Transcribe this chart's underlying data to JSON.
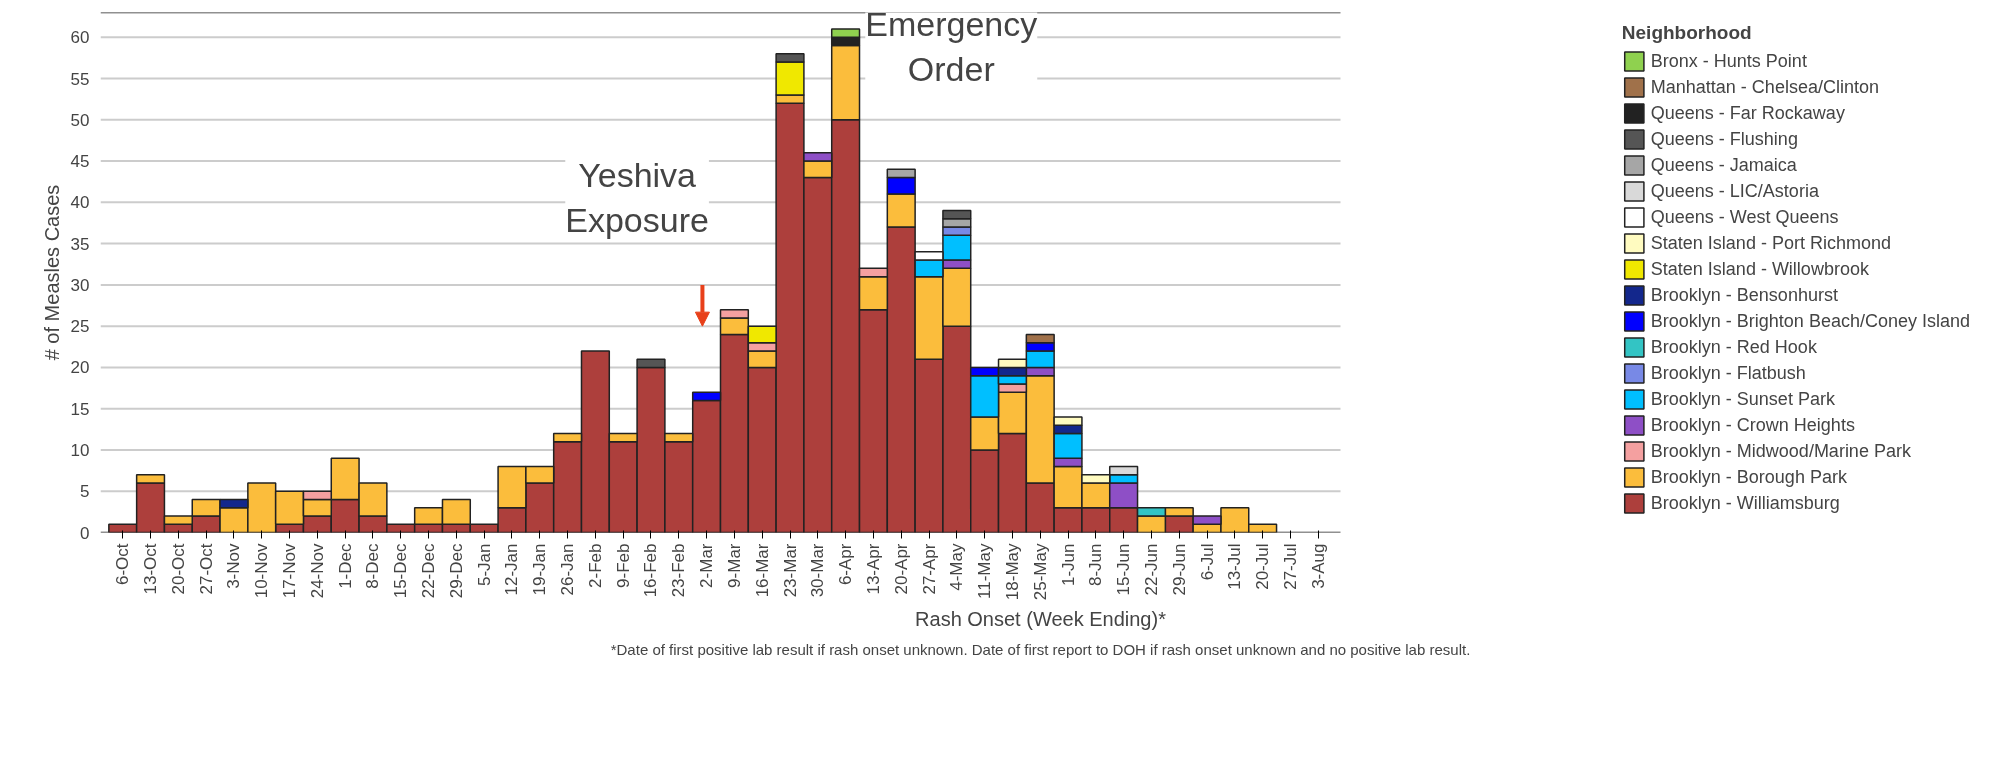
{
  "chart_data": {
    "type": "bar",
    "stacked": true,
    "xlabel": "Rash Onset (Week Ending)*",
    "ylabel": "# of Measles Cases",
    "legend_title": "Neighborhood",
    "categories": [
      "6-Oct",
      "13-Oct",
      "20-Oct",
      "27-Oct",
      "3-Nov",
      "10-Nov",
      "17-Nov",
      "24-Nov",
      "1-Dec",
      "8-Dec",
      "15-Dec",
      "22-Dec",
      "29-Dec",
      "5-Jan",
      "12-Jan",
      "19-Jan",
      "26-Jan",
      "2-Feb",
      "9-Feb",
      "16-Feb",
      "23-Feb",
      "2-Mar",
      "9-Mar",
      "16-Mar",
      "23-Mar",
      "30-Mar",
      "6-Apr",
      "13-Apr",
      "20-Apr",
      "27-Apr",
      "4-May",
      "11-May",
      "18-May",
      "25-May",
      "1-Jun",
      "8-Jun",
      "15-Jun",
      "22-Jun",
      "29-Jun",
      "6-Jul",
      "13-Jul",
      "20-Jul",
      "27-Jul",
      "3-Aug"
    ],
    "ylim": [
      0,
      63
    ],
    "yticks": [
      0,
      5,
      10,
      15,
      20,
      25,
      30,
      35,
      40,
      45,
      50,
      55,
      60
    ],
    "grid": "y",
    "legend": "right",
    "series": [
      {
        "name": "Brooklyn - Williamsburg",
        "color": "#ad3f3c",
        "values": [
          1,
          6,
          1,
          2,
          0,
          0,
          1,
          2,
          4,
          2,
          1,
          1,
          1,
          1,
          3,
          6,
          11,
          22,
          11,
          20,
          11,
          16,
          24,
          20,
          52,
          43,
          50,
          27,
          37,
          21,
          25,
          10,
          12,
          6,
          3,
          3,
          3,
          0,
          2,
          0,
          0,
          0,
          0,
          0
        ]
      },
      {
        "name": "Brooklyn - Borough Park",
        "color": "#fbbd3c",
        "values": [
          0,
          1,
          1,
          2,
          3,
          6,
          4,
          2,
          5,
          4,
          0,
          2,
          3,
          0,
          5,
          2,
          1,
          0,
          1,
          0,
          1,
          0,
          2,
          2,
          1,
          2,
          9,
          4,
          4,
          10,
          7,
          4,
          5,
          13,
          5,
          3,
          0,
          2,
          1,
          1,
          3,
          1,
          0,
          0
        ]
      },
      {
        "name": "Brooklyn - Midwood/Marine Park",
        "color": "#f4a0a0",
        "values": [
          0,
          0,
          0,
          0,
          0,
          0,
          0,
          1,
          0,
          0,
          0,
          0,
          0,
          0,
          0,
          0,
          0,
          0,
          0,
          0,
          0,
          0,
          1,
          1,
          0,
          0,
          0,
          1,
          0,
          0,
          0,
          0,
          1,
          0,
          0,
          0,
          0,
          0,
          0,
          0,
          0,
          0,
          0,
          0
        ]
      },
      {
        "name": "Brooklyn - Crown Heights",
        "color": "#8e4fc6",
        "values": [
          0,
          0,
          0,
          0,
          0,
          0,
          0,
          0,
          0,
          0,
          0,
          0,
          0,
          0,
          0,
          0,
          0,
          0,
          0,
          0,
          0,
          0,
          0,
          0,
          0,
          1,
          0,
          0,
          0,
          0,
          1,
          0,
          0,
          1,
          1,
          0,
          3,
          0,
          0,
          1,
          0,
          0,
          0,
          0
        ]
      },
      {
        "name": "Brooklyn - Sunset Park",
        "color": "#00bfff",
        "values": [
          0,
          0,
          0,
          0,
          0,
          0,
          0,
          0,
          0,
          0,
          0,
          0,
          0,
          0,
          0,
          0,
          0,
          0,
          0,
          0,
          0,
          0,
          0,
          0,
          0,
          0,
          0,
          0,
          0,
          2,
          3,
          5,
          1,
          2,
          3,
          0,
          1,
          0,
          0,
          0,
          0,
          0,
          0,
          0
        ]
      },
      {
        "name": "Brooklyn - Flatbush",
        "color": "#7889e6",
        "values": [
          0,
          0,
          0,
          0,
          0,
          0,
          0,
          0,
          0,
          0,
          0,
          0,
          0,
          0,
          0,
          0,
          0,
          0,
          0,
          0,
          0,
          0,
          0,
          0,
          0,
          0,
          0,
          0,
          0,
          0,
          1,
          0,
          0,
          0,
          0,
          0,
          0,
          0,
          0,
          0,
          0,
          0,
          0,
          0
        ]
      },
      {
        "name": "Brooklyn - Red Hook",
        "color": "#33c4c4",
        "values": [
          0,
          0,
          0,
          0,
          0,
          0,
          0,
          0,
          0,
          0,
          0,
          0,
          0,
          0,
          0,
          0,
          0,
          0,
          0,
          0,
          0,
          0,
          0,
          0,
          0,
          0,
          0,
          0,
          0,
          0,
          0,
          0,
          0,
          0,
          0,
          0,
          0,
          1,
          0,
          0,
          0,
          0,
          0,
          0
        ]
      },
      {
        "name": "Brooklyn - Brighton Beach/Coney Island",
        "color": "#0000ff",
        "values": [
          0,
          0,
          0,
          0,
          0,
          0,
          0,
          0,
          0,
          0,
          0,
          0,
          0,
          0,
          0,
          0,
          0,
          0,
          0,
          0,
          0,
          1,
          0,
          0,
          0,
          0,
          0,
          0,
          2,
          0,
          0,
          1,
          0,
          1,
          0,
          0,
          0,
          0,
          0,
          0,
          0,
          0,
          0,
          0
        ]
      },
      {
        "name": "Brooklyn - Bensonhurst",
        "color": "#13278c",
        "values": [
          0,
          0,
          0,
          0,
          1,
          0,
          0,
          0,
          0,
          0,
          0,
          0,
          0,
          0,
          0,
          0,
          0,
          0,
          0,
          0,
          0,
          0,
          0,
          0,
          0,
          0,
          0,
          0,
          0,
          0,
          0,
          0,
          1,
          0,
          1,
          0,
          0,
          0,
          0,
          0,
          0,
          0,
          0,
          0
        ]
      },
      {
        "name": "Staten Island - Willowbrook",
        "color": "#f0e800",
        "values": [
          0,
          0,
          0,
          0,
          0,
          0,
          0,
          0,
          0,
          0,
          0,
          0,
          0,
          0,
          0,
          0,
          0,
          0,
          0,
          0,
          0,
          0,
          0,
          2,
          4,
          0,
          0,
          0,
          0,
          0,
          0,
          0,
          0,
          0,
          0,
          0,
          0,
          0,
          0,
          0,
          0,
          0,
          0,
          0
        ]
      },
      {
        "name": "Staten Island - Port Richmond",
        "color": "#fffbc0",
        "values": [
          0,
          0,
          0,
          0,
          0,
          0,
          0,
          0,
          0,
          0,
          0,
          0,
          0,
          0,
          0,
          0,
          0,
          0,
          0,
          0,
          0,
          0,
          0,
          0,
          0,
          0,
          0,
          0,
          0,
          0,
          0,
          0,
          1,
          0,
          1,
          1,
          0,
          0,
          0,
          0,
          0,
          0,
          0,
          0
        ]
      },
      {
        "name": "Queens - West Queens",
        "color": "#ffffff",
        "values": [
          0,
          0,
          0,
          0,
          0,
          0,
          0,
          0,
          0,
          0,
          0,
          0,
          0,
          0,
          0,
          0,
          0,
          0,
          0,
          0,
          0,
          0,
          0,
          0,
          0,
          0,
          0,
          0,
          0,
          1,
          0,
          0,
          0,
          0,
          0,
          0,
          0,
          0,
          0,
          0,
          0,
          0,
          0,
          0
        ]
      },
      {
        "name": "Queens - LIC/Astoria",
        "color": "#d9d9d9",
        "values": [
          0,
          0,
          0,
          0,
          0,
          0,
          0,
          0,
          0,
          0,
          0,
          0,
          0,
          0,
          0,
          0,
          0,
          0,
          0,
          0,
          0,
          0,
          0,
          0,
          0,
          0,
          0,
          0,
          0,
          0,
          0,
          0,
          0,
          0,
          0,
          0,
          1,
          0,
          0,
          0,
          0,
          0,
          0,
          0
        ]
      },
      {
        "name": "Queens - Jamaica",
        "color": "#a6a6a6",
        "values": [
          0,
          0,
          0,
          0,
          0,
          0,
          0,
          0,
          0,
          0,
          0,
          0,
          0,
          0,
          0,
          0,
          0,
          0,
          0,
          0,
          0,
          0,
          0,
          0,
          0,
          0,
          0,
          0,
          1,
          0,
          1,
          0,
          0,
          0,
          0,
          0,
          0,
          0,
          0,
          0,
          0,
          0,
          0,
          0
        ]
      },
      {
        "name": "Queens - Flushing",
        "color": "#555555",
        "values": [
          0,
          0,
          0,
          0,
          0,
          0,
          0,
          0,
          0,
          0,
          0,
          0,
          0,
          0,
          0,
          0,
          0,
          0,
          0,
          1,
          0,
          0,
          0,
          0,
          1,
          0,
          0,
          0,
          0,
          0,
          1,
          0,
          0,
          0,
          0,
          0,
          0,
          0,
          0,
          0,
          0,
          0,
          0,
          0
        ]
      },
      {
        "name": "Queens - Far Rockaway",
        "color": "#222222",
        "values": [
          0,
          0,
          0,
          0,
          0,
          0,
          0,
          0,
          0,
          0,
          0,
          0,
          0,
          0,
          0,
          0,
          0,
          0,
          0,
          0,
          0,
          0,
          0,
          0,
          0,
          0,
          1,
          0,
          0,
          0,
          0,
          0,
          0,
          0,
          0,
          0,
          0,
          0,
          0,
          0,
          0,
          0,
          0,
          0
        ]
      },
      {
        "name": "Manhattan - Chelsea/Clinton",
        "color": "#a0714a",
        "values": [
          0,
          0,
          0,
          0,
          0,
          0,
          0,
          0,
          0,
          0,
          0,
          0,
          0,
          0,
          0,
          0,
          0,
          0,
          0,
          0,
          0,
          0,
          0,
          0,
          0,
          0,
          0,
          0,
          0,
          0,
          0,
          0,
          0,
          1,
          0,
          0,
          0,
          0,
          0,
          0,
          0,
          0,
          0,
          0
        ]
      },
      {
        "name": "Bronx - Hunts Point",
        "color": "#8fd14f",
        "values": [
          0,
          0,
          0,
          0,
          0,
          0,
          0,
          0,
          0,
          0,
          0,
          0,
          0,
          0,
          0,
          0,
          0,
          0,
          0,
          0,
          0,
          0,
          0,
          0,
          0,
          0,
          1,
          0,
          0,
          0,
          0,
          0,
          0,
          0,
          0,
          0,
          0,
          0,
          0,
          0,
          0,
          0,
          0,
          0
        ]
      }
    ],
    "annotations": [
      "Yeshiva\nExposure",
      "Emergency\nOrder",
      "*Date of first positive lab result if rash onset unknown. Date of first report to DOH if rash onset unknown and no positive lab result."
    ]
  }
}
